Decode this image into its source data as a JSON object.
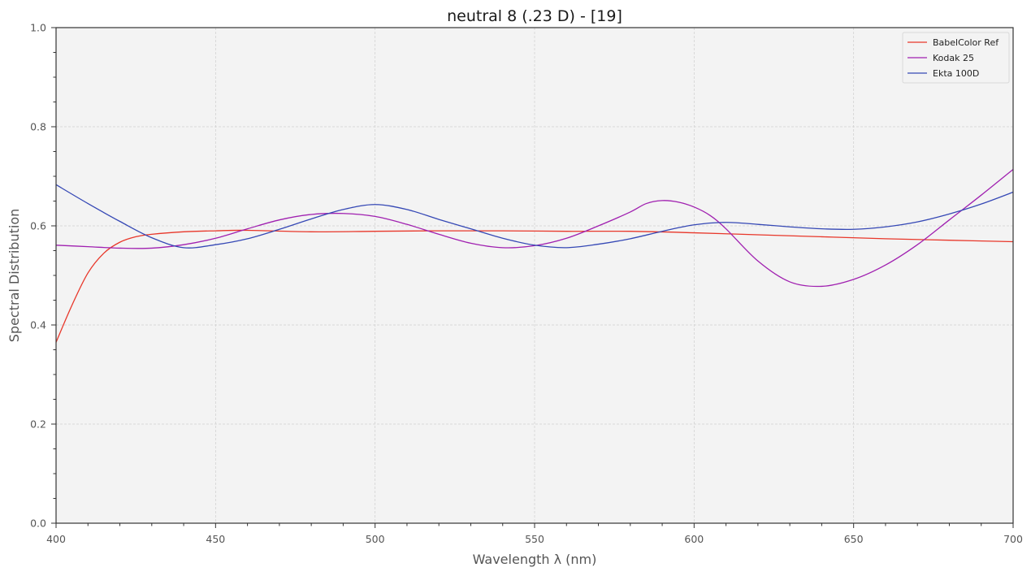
{
  "chart_data": {
    "type": "line",
    "title": "neutral 8 (.23 D) - [19]",
    "xlabel": "Wavelength λ (nm)",
    "ylabel": "Spectral Distribution",
    "xlim": [
      400,
      700
    ],
    "ylim": [
      0.0,
      1.0
    ],
    "x_ticks": [
      400,
      450,
      500,
      550,
      600,
      650,
      700
    ],
    "x_tick_labels": [
      "400",
      "450",
      "500",
      "550",
      "600",
      "650",
      "700"
    ],
    "y_ticks": [
      0.0,
      0.2,
      0.4,
      0.6,
      0.8,
      1.0
    ],
    "y_tick_labels": [
      "0.0",
      "0.2",
      "0.4",
      "0.6",
      "0.8",
      "1.0"
    ],
    "grid": true,
    "legend_position": "top-right",
    "series": [
      {
        "name": "BabelColor Ref",
        "color": "#e8372a",
        "x": [
          400,
          405,
          410,
          415,
          420,
          425,
          430,
          440,
          450,
          460,
          480,
          500,
          520,
          540,
          560,
          580,
          600,
          620,
          640,
          660,
          680,
          700
        ],
        "y": [
          0.365,
          0.44,
          0.505,
          0.545,
          0.567,
          0.578,
          0.583,
          0.588,
          0.59,
          0.591,
          0.588,
          0.589,
          0.59,
          0.59,
          0.589,
          0.589,
          0.586,
          0.582,
          0.578,
          0.574,
          0.571,
          0.568
        ]
      },
      {
        "name": "Kodak 25",
        "color": "#a020b0",
        "x": [
          400,
          410,
          420,
          430,
          440,
          450,
          460,
          470,
          480,
          490,
          500,
          510,
          520,
          530,
          540,
          550,
          560,
          570,
          580,
          585,
          590,
          595,
          600,
          605,
          610,
          620,
          630,
          640,
          650,
          660,
          670,
          680,
          690,
          700
        ],
        "y": [
          0.561,
          0.558,
          0.555,
          0.555,
          0.562,
          0.575,
          0.594,
          0.612,
          0.623,
          0.625,
          0.619,
          0.603,
          0.583,
          0.565,
          0.556,
          0.56,
          0.575,
          0.6,
          0.628,
          0.645,
          0.651,
          0.648,
          0.638,
          0.621,
          0.594,
          0.529,
          0.487,
          0.478,
          0.492,
          0.521,
          0.562,
          0.612,
          0.662,
          0.714
        ]
      },
      {
        "name": "Ekta 100D",
        "color": "#3548b5",
        "x": [
          400,
          410,
          420,
          430,
          440,
          450,
          460,
          470,
          480,
          490,
          500,
          510,
          520,
          530,
          540,
          550,
          560,
          570,
          580,
          590,
          600,
          610,
          620,
          630,
          640,
          650,
          660,
          670,
          680,
          690,
          700
        ],
        "y": [
          0.683,
          0.645,
          0.609,
          0.576,
          0.556,
          0.562,
          0.574,
          0.593,
          0.614,
          0.633,
          0.643,
          0.633,
          0.613,
          0.594,
          0.575,
          0.561,
          0.556,
          0.563,
          0.574,
          0.589,
          0.602,
          0.607,
          0.603,
          0.598,
          0.594,
          0.593,
          0.598,
          0.608,
          0.624,
          0.644,
          0.668
        ]
      }
    ]
  }
}
